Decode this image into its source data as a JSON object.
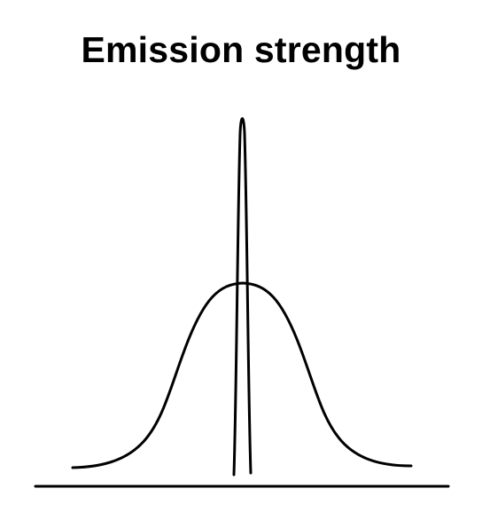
{
  "title": "Emission strength",
  "chart_data": {
    "type": "line",
    "title": "Emission strength",
    "xlabel": "",
    "ylabel": "",
    "grid": false,
    "legend": "none",
    "series": [
      {
        "shape": "broad-gaussian",
        "relative_peak": 0.52
      },
      {
        "shape": "narrow-spike",
        "relative_peak": 1.0
      }
    ]
  }
}
